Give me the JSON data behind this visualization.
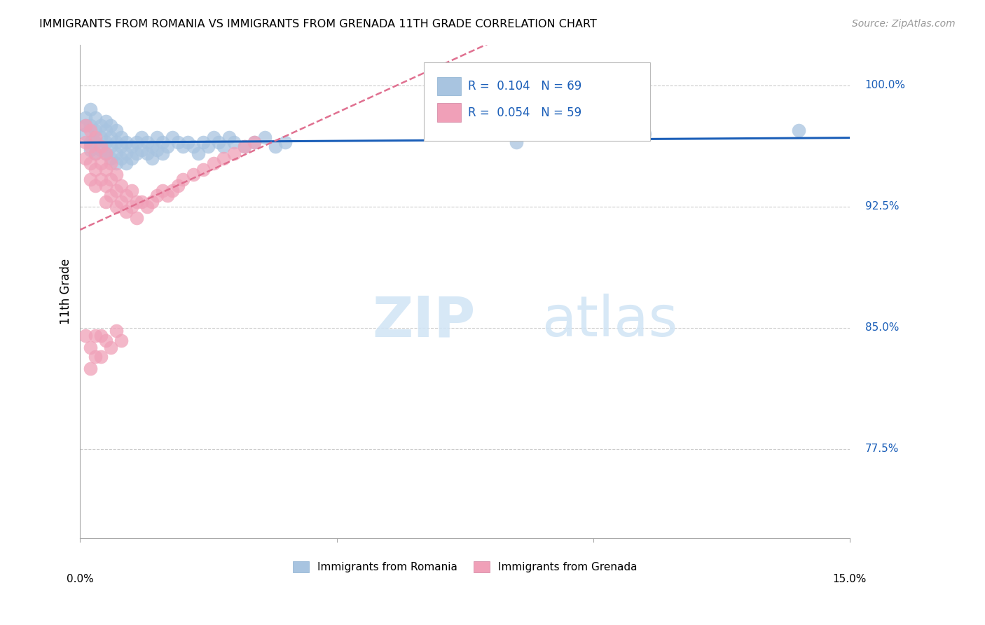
{
  "title": "IMMIGRANTS FROM ROMANIA VS IMMIGRANTS FROM GRENADA 11TH GRADE CORRELATION CHART",
  "source": "Source: ZipAtlas.com",
  "ylabel": "11th Grade",
  "ylabel_right_labels": [
    "100.0%",
    "92.5%",
    "85.0%",
    "77.5%"
  ],
  "ylabel_right_values": [
    1.0,
    0.925,
    0.85,
    0.775
  ],
  "xmin": 0.0,
  "xmax": 0.15,
  "ymin": 0.72,
  "ymax": 1.025,
  "romania_R": 0.104,
  "romania_N": 69,
  "grenada_R": 0.054,
  "grenada_N": 59,
  "romania_color": "#a8c4e0",
  "grenada_color": "#f0a0b8",
  "romania_line_color": "#1a5eb8",
  "grenada_line_color": "#e07090",
  "legend_label_romania": "Immigrants from Romania",
  "legend_label_grenada": "Immigrants from Grenada",
  "watermark_zip": "ZIP",
  "watermark_atlas": "atlas",
  "romania_x": [
    0.001,
    0.001,
    0.001,
    0.002,
    0.002,
    0.002,
    0.002,
    0.003,
    0.003,
    0.003,
    0.003,
    0.004,
    0.004,
    0.004,
    0.005,
    0.005,
    0.005,
    0.005,
    0.006,
    0.006,
    0.006,
    0.006,
    0.007,
    0.007,
    0.007,
    0.007,
    0.008,
    0.008,
    0.008,
    0.009,
    0.009,
    0.009,
    0.01,
    0.01,
    0.011,
    0.011,
    0.012,
    0.012,
    0.013,
    0.013,
    0.014,
    0.014,
    0.015,
    0.015,
    0.016,
    0.016,
    0.017,
    0.018,
    0.019,
    0.02,
    0.021,
    0.022,
    0.023,
    0.024,
    0.025,
    0.026,
    0.027,
    0.028,
    0.029,
    0.03,
    0.032,
    0.034,
    0.036,
    0.038,
    0.04,
    0.07,
    0.085,
    0.11,
    0.14
  ],
  "romania_y": [
    0.98,
    0.975,
    0.97,
    0.985,
    0.975,
    0.965,
    0.96,
    0.98,
    0.972,
    0.965,
    0.958,
    0.975,
    0.968,
    0.96,
    0.978,
    0.972,
    0.965,
    0.958,
    0.975,
    0.968,
    0.962,
    0.955,
    0.972,
    0.965,
    0.958,
    0.952,
    0.968,
    0.962,
    0.955,
    0.965,
    0.958,
    0.952,
    0.962,
    0.955,
    0.965,
    0.958,
    0.968,
    0.96,
    0.965,
    0.958,
    0.962,
    0.955,
    0.968,
    0.96,
    0.965,
    0.958,
    0.962,
    0.968,
    0.965,
    0.962,
    0.965,
    0.962,
    0.958,
    0.965,
    0.962,
    0.968,
    0.965,
    0.962,
    0.968,
    0.965,
    0.962,
    0.965,
    0.968,
    0.962,
    0.965,
    0.97,
    0.965,
    0.97,
    0.972
  ],
  "grenada_x": [
    0.001,
    0.001,
    0.001,
    0.002,
    0.002,
    0.002,
    0.002,
    0.003,
    0.003,
    0.003,
    0.003,
    0.004,
    0.004,
    0.004,
    0.005,
    0.005,
    0.005,
    0.005,
    0.006,
    0.006,
    0.006,
    0.007,
    0.007,
    0.007,
    0.008,
    0.008,
    0.009,
    0.009,
    0.01,
    0.01,
    0.011,
    0.011,
    0.012,
    0.013,
    0.014,
    0.015,
    0.016,
    0.017,
    0.018,
    0.019,
    0.02,
    0.022,
    0.024,
    0.026,
    0.028,
    0.03,
    0.032,
    0.034,
    0.001,
    0.002,
    0.002,
    0.003,
    0.003,
    0.004,
    0.004,
    0.005,
    0.006,
    0.007,
    0.008
  ],
  "grenada_y": [
    0.975,
    0.965,
    0.955,
    0.972,
    0.962,
    0.952,
    0.942,
    0.968,
    0.958,
    0.948,
    0.938,
    0.962,
    0.952,
    0.942,
    0.958,
    0.948,
    0.938,
    0.928,
    0.952,
    0.942,
    0.932,
    0.945,
    0.935,
    0.925,
    0.938,
    0.928,
    0.932,
    0.922,
    0.935,
    0.925,
    0.928,
    0.918,
    0.928,
    0.925,
    0.928,
    0.932,
    0.935,
    0.932,
    0.935,
    0.938,
    0.942,
    0.945,
    0.948,
    0.952,
    0.955,
    0.958,
    0.962,
    0.965,
    0.845,
    0.838,
    0.825,
    0.845,
    0.832,
    0.845,
    0.832,
    0.842,
    0.838,
    0.848,
    0.842
  ]
}
